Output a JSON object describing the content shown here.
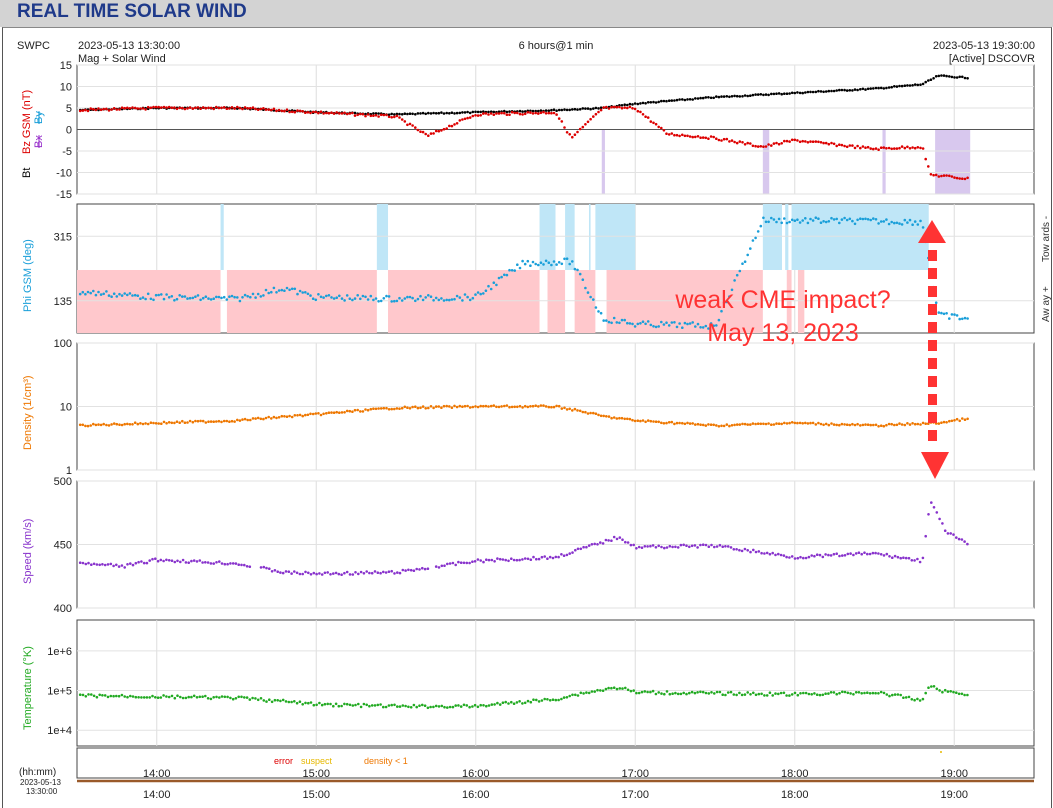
{
  "header": {
    "title": "REAL TIME SOLAR WIND"
  },
  "meta": {
    "org": "SWPC",
    "start": "2023-05-13 13:30:00",
    "subtitle": "Mag + Solar Wind",
    "span": "6 hours@1 min",
    "end": "2023-05-13 19:30:00",
    "source": "[Active] DSCOVR"
  },
  "panels": {
    "mag": {
      "labels": [
        "Bt",
        "Bz GSM (nT)",
        "Bx",
        "By"
      ],
      "ticks": [
        "15",
        "10",
        "5",
        "0",
        "-5",
        "-10",
        "-15"
      ],
      "colors": {
        "bt": "#000000",
        "bz": "#dd0000",
        "bx": "#9933cc",
        "by": "#1a9fd9"
      }
    },
    "phi": {
      "label": "Phi GSM (deg)",
      "ticks": [
        "315",
        "135"
      ],
      "towards": "Tow ards -",
      "away": "Aw ay +",
      "colors": {
        "pts": "#1a9fd9",
        "tow": "#bfe6f7",
        "away": "#ffc8cc"
      }
    },
    "density": {
      "label": "Density (1/cm³)",
      "ticks": [
        "100",
        "10",
        "1"
      ],
      "color": "#ee7700"
    },
    "speed": {
      "label": "Speed (km/s)",
      "ticks": [
        "500",
        "450",
        "400"
      ],
      "color": "#8833cc"
    },
    "temp": {
      "label": "Temperature (°K)",
      "ticks": [
        "1e+6",
        "1e+5",
        "1e+4"
      ],
      "color": "#22aa22"
    }
  },
  "status_legend": {
    "error": "error",
    "suspect": "suspect",
    "density": "density < 1"
  },
  "time_axis": {
    "unit": "(hh:mm)",
    "date": "2023-05-13",
    "time": "13:30:00",
    "ticks": [
      "14:00",
      "15:00",
      "16:00",
      "17:00",
      "18:00",
      "19:00"
    ]
  },
  "annotation": {
    "line1": "weak CME impact?",
    "line2": "May 13, 2023",
    "color": "#ff3333"
  },
  "chart_data": [
    {
      "type": "scatter",
      "title": "",
      "ylabel": "Bt / Bz GSM (nT)",
      "x_range_hours": [
        13.5,
        19.5
      ],
      "ylim": [
        -15,
        15
      ],
      "series": [
        {
          "name": "Bt",
          "x": [
            13.5,
            14.0,
            14.5,
            15.0,
            15.5,
            16.0,
            16.5,
            16.8,
            17.0,
            17.5,
            18.0,
            18.5,
            18.8,
            18.9,
            19.1
          ],
          "values": [
            4.5,
            5,
            5,
            4,
            3.5,
            4,
            4.5,
            5,
            6,
            7.5,
            8.5,
            9.5,
            10.5,
            12.5,
            12
          ]
        },
        {
          "name": "Bz GSM",
          "x": [
            13.5,
            14.0,
            14.5,
            15.0,
            15.5,
            15.7,
            16.0,
            16.5,
            16.6,
            16.8,
            17.0,
            17.2,
            17.5,
            17.8,
            18.0,
            18.5,
            18.8,
            18.85,
            19.1
          ],
          "values": [
            4.5,
            5,
            5,
            4,
            3,
            -1.5,
            3.5,
            4,
            -2,
            5,
            5,
            -1,
            -2,
            -4,
            -2.5,
            -4.5,
            -4,
            -10.5,
            -11.5
          ]
        }
      ]
    },
    {
      "type": "scatter",
      "title": "",
      "ylabel": "Phi GSM (deg)",
      "x_range_hours": [
        13.5,
        19.5
      ],
      "series": [
        {
          "name": "Phi GSM",
          "x": [
            13.5,
            14.0,
            14.5,
            14.8,
            15.0,
            15.5,
            16.0,
            16.3,
            16.6,
            16.8,
            17.0,
            17.5,
            17.8,
            18.5,
            18.8,
            18.9,
            19.1
          ],
          "values": [
            160,
            145,
            140,
            170,
            145,
            140,
            145,
            240,
            245,
            85,
            70,
            65,
            360,
            357,
            355,
            95,
            85
          ]
        }
      ]
    },
    {
      "type": "scatter",
      "title": "",
      "ylabel": "Density (1/cm³)",
      "x_range_hours": [
        13.5,
        19.5
      ],
      "ylim": [
        1,
        100
      ],
      "log": true,
      "series": [
        {
          "name": "Density",
          "x": [
            13.5,
            14.0,
            14.5,
            15.0,
            15.5,
            16.0,
            16.5,
            16.8,
            17.0,
            17.5,
            18.0,
            18.5,
            18.9,
            19.1
          ],
          "values": [
            5,
            5.5,
            6,
            7.5,
            9.5,
            10,
            10,
            7,
            6,
            5,
            5.5,
            5,
            5.5,
            6.5
          ]
        }
      ]
    },
    {
      "type": "scatter",
      "title": "",
      "ylabel": "Speed (km/s)",
      "x_range_hours": [
        13.5,
        19.5
      ],
      "ylim": [
        400,
        500
      ],
      "series": [
        {
          "name": "Speed",
          "x": [
            13.5,
            13.8,
            14.0,
            14.5,
            14.8,
            15.0,
            15.5,
            16.0,
            16.5,
            16.9,
            17.0,
            17.5,
            18.0,
            18.5,
            18.8,
            18.85,
            18.95,
            19.1
          ],
          "values": [
            435,
            433,
            438,
            435,
            428,
            427,
            428,
            437,
            440,
            456,
            448,
            449,
            440,
            443,
            437,
            484,
            460,
            449
          ]
        }
      ]
    },
    {
      "type": "scatter",
      "title": "",
      "ylabel": "Temperature (°K)",
      "x_range_hours": [
        13.5,
        19.5
      ],
      "ylim": [
        4000,
        6000000
      ],
      "log": true,
      "series": [
        {
          "name": "Temperature",
          "x": [
            13.5,
            14.0,
            14.5,
            15.0,
            15.5,
            16.0,
            16.5,
            16.9,
            17.0,
            17.5,
            18.0,
            18.5,
            18.8,
            18.85,
            18.9,
            19.1
          ],
          "values": [
            75000,
            70000,
            65000,
            45000,
            40000,
            40000,
            60000,
            120000,
            90000,
            85000,
            80000,
            90000,
            55000,
            140000,
            100000,
            80000
          ]
        }
      ]
    }
  ]
}
